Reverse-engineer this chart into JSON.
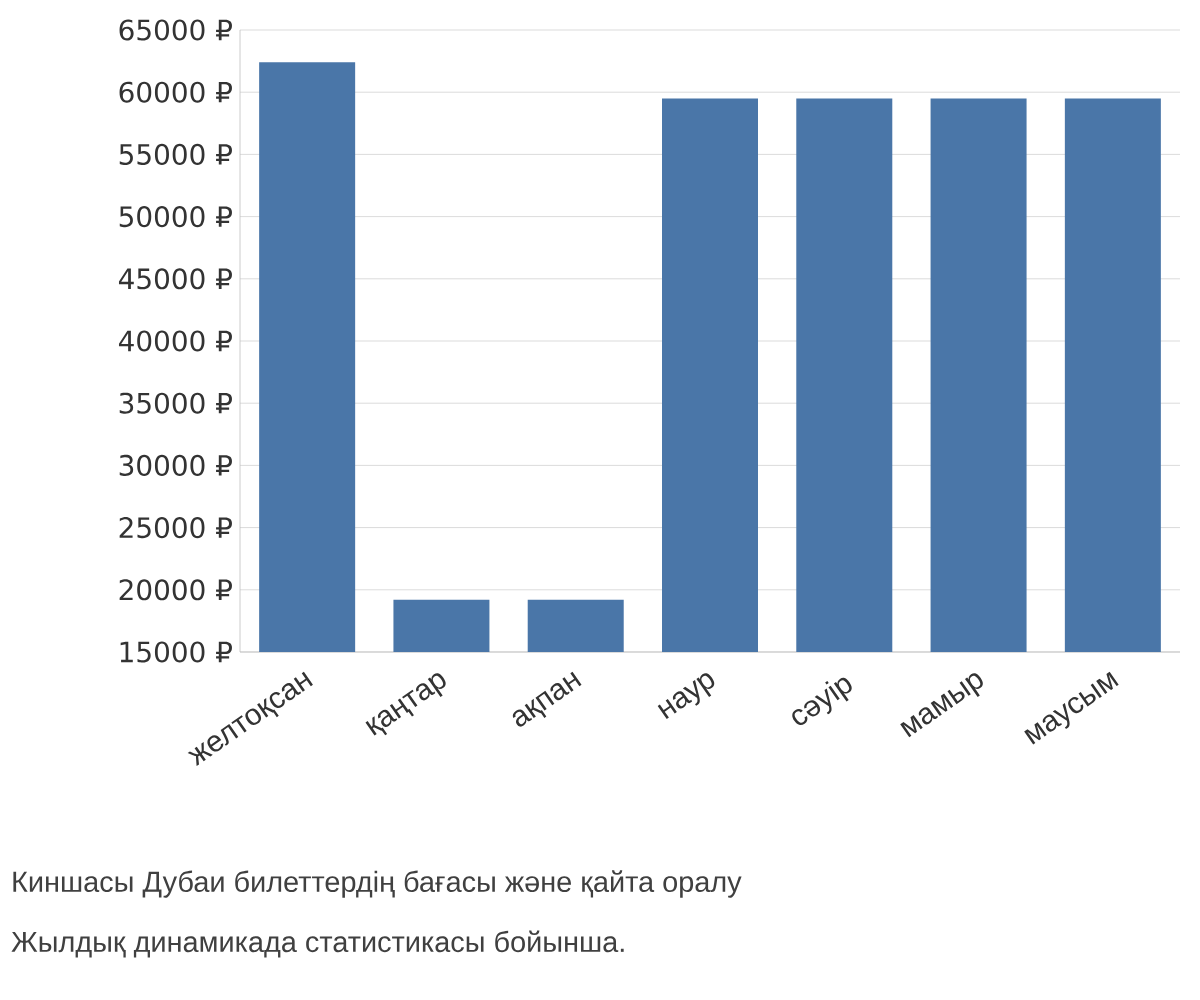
{
  "chart_data": {
    "type": "bar",
    "categories": [
      "желтоқсан",
      "қаңтар",
      "ақпан",
      "наур",
      "сәуір",
      "мамыр",
      "маусым"
    ],
    "values": [
      62400,
      19200,
      19200,
      59500,
      59500,
      59500,
      59500
    ],
    "color": "#4a76a8",
    "ylim": [
      15000,
      65000
    ],
    "yticks": [
      {
        "value": 15000,
        "label": "15000 ₽"
      },
      {
        "value": 20000,
        "label": "20000 ₽"
      },
      {
        "value": 25000,
        "label": "25000 ₽"
      },
      {
        "value": 30000,
        "label": "30000 ₽"
      },
      {
        "value": 35000,
        "label": "35000 ₽"
      },
      {
        "value": 40000,
        "label": "40000 ₽"
      },
      {
        "value": 45000,
        "label": "45000 ₽"
      },
      {
        "value": 50000,
        "label": "50000 ₽"
      },
      {
        "value": 55000,
        "label": "55000 ₽"
      },
      {
        "value": 60000,
        "label": "60000 ₽"
      },
      {
        "value": 65000,
        "label": "65000 ₽"
      }
    ],
    "grid": "y",
    "annotations": [
      "Киншасы Дубаи билеттердің бағасы және қайта оралу",
      "Жылдық динамикада статистикасы бойынша."
    ]
  }
}
